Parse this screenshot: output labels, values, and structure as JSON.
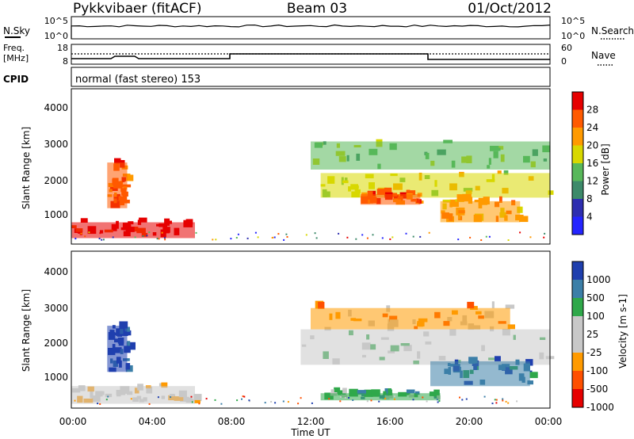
{
  "header": {
    "station": "Pykkvibaer (fitACF)",
    "beam": "Beam 03",
    "date": "01/Oct/2012"
  },
  "strip_panels": {
    "nsky_label": "N.Sky",
    "nsearch_label": "N.Search",
    "nsky_ticks": [
      "10^5",
      "10^0"
    ],
    "nsearch_ticks": [
      "10^5",
      "10^0"
    ],
    "freq_label_1": "Freq.",
    "freq_label_2": "[MHz]",
    "freq_ticks": [
      "18",
      "8"
    ],
    "nave_label": "Nave",
    "nave_ticks": [
      "60",
      "0"
    ],
    "cpid_label": "CPID",
    "cpid_text": "normal (fast stereo) 153"
  },
  "colors": {
    "power": [
      "#2424ff",
      "#2e2eb0",
      "#3d8a6a",
      "#58b85a",
      "#d8d800",
      "#ff9a00",
      "#ff5a00",
      "#e60000"
    ],
    "velocity": [
      "#1f3fae",
      "#3c7fa8",
      "#2fa84a",
      "#c8c8c8",
      "#c8c8c8",
      "#ff9a00",
      "#ff5000",
      "#e60000"
    ]
  },
  "chart_data": [
    {
      "type": "heatmap",
      "panel": "power",
      "ylabel": "Slant Range [km]",
      "yticks": [
        "1000",
        "2000",
        "3000",
        "4000"
      ],
      "ylim": [
        180,
        4600
      ],
      "xlim_hours": [
        0,
        24
      ],
      "colorbar_label": "Power [dB]",
      "colorbar_ticks": [
        "4",
        "8",
        "12",
        "16",
        "20",
        "24",
        "28"
      ],
      "features": [
        {
          "t0": 0.0,
          "t1": 6.2,
          "r0": 350,
          "r1": 800,
          "level": 7
        },
        {
          "t0": 1.8,
          "t1": 2.8,
          "r0": 1200,
          "r1": 2500,
          "level": 6
        },
        {
          "t0": 12.5,
          "t1": 24.0,
          "r0": 1500,
          "r1": 2200,
          "level": 4
        },
        {
          "t0": 14.5,
          "t1": 17.5,
          "r0": 1300,
          "r1": 1600,
          "level": 6
        },
        {
          "t0": 18.5,
          "t1": 22.5,
          "r0": 800,
          "r1": 1400,
          "level": 5
        },
        {
          "t0": 12.0,
          "t1": 24.0,
          "r0": 2300,
          "r1": 3100,
          "level": 3
        }
      ]
    },
    {
      "type": "heatmap",
      "panel": "velocity",
      "ylabel": "Slant Range [km]",
      "yticks": [
        "1000",
        "2000",
        "3000",
        "4000"
      ],
      "ylim": [
        180,
        4600
      ],
      "xlim_hours": [
        0,
        24
      ],
      "xticks": [
        "00:00",
        "04:00",
        "08:00",
        "12:00",
        "16:00",
        "20:00",
        "00:00"
      ],
      "xlabel": "Time UT",
      "colorbar_label": "Velocity [m s-1]",
      "colorbar_ticks": [
        "1000",
        "500",
        "100",
        "25",
        "-25",
        "-100",
        "-500",
        "-1000"
      ],
      "features": [
        {
          "t0": 0.0,
          "t1": 6.2,
          "r0": 300,
          "r1": 800,
          "level": 4
        },
        {
          "t0": 1.8,
          "t1": 2.8,
          "r0": 1200,
          "r1": 2500,
          "level": 0
        },
        {
          "t0": 11.5,
          "t1": 24.0,
          "r0": 1400,
          "r1": 2400,
          "level": 3
        },
        {
          "t0": 12.0,
          "t1": 22.0,
          "r0": 2400,
          "r1": 3000,
          "level": 5
        },
        {
          "t0": 18.0,
          "t1": 23.0,
          "r0": 800,
          "r1": 1500,
          "level": 1
        },
        {
          "t0": 12.5,
          "t1": 18.5,
          "r0": 400,
          "r1": 600,
          "level": 2
        }
      ]
    }
  ]
}
